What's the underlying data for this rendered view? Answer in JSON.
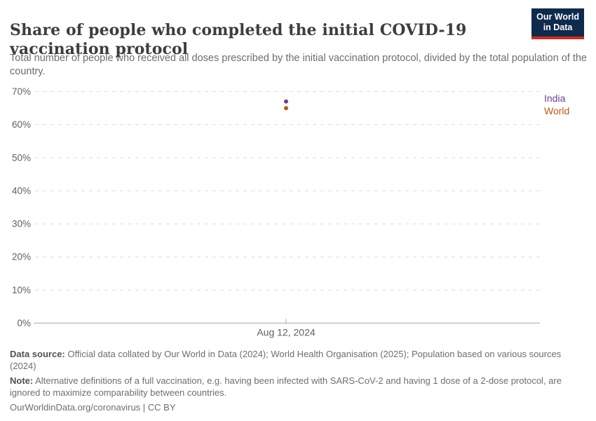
{
  "header": {
    "title": "Share of people who completed the initial COVID-19 vaccination protocol",
    "subtitle": "Total number of people who received all doses prescribed by the initial vaccination protocol, divided by the total population of the country.",
    "logo": {
      "line1": "Our World",
      "line2": "in Data"
    }
  },
  "chart_data": {
    "type": "scatter",
    "title": "Share of people who completed the initial COVID-19 vaccination protocol",
    "x_tick_label": "Aug 12, 2024",
    "series": [
      {
        "name": "India",
        "value": 67,
        "color": "#6D3E91"
      },
      {
        "name": "World",
        "value": 65,
        "color": "#BE5915"
      }
    ],
    "ylim": [
      0,
      70
    ],
    "yticks": [
      0,
      10,
      20,
      30,
      40,
      50,
      60,
      70
    ],
    "ytick_format": "{}%",
    "grid": "dashed horizontal gridlines, solid baseline at 0%",
    "legend_position": "right"
  },
  "footer": {
    "datasource_label": "Data source:",
    "datasource_text": " Official data collated by Our World in Data (2024); World Health Organisation (2025); Population based on various sources (2024)",
    "note_label": "Note:",
    "note_text": " Alternative definitions of a full vaccination, e.g. having been infected with SARS-CoV-2 and having 1 dose of a 2-dose protocol, are ignored to maximize comparability between countries.",
    "license": "OurWorldinData.org/coronavirus | CC BY"
  }
}
